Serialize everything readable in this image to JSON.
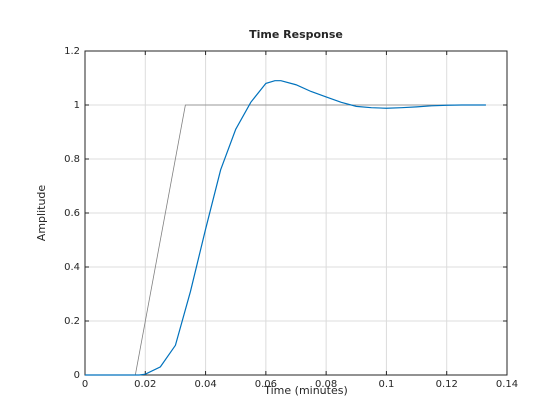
{
  "chart_data": {
    "type": "line",
    "title": "Time Response",
    "x_label": "Time (minutes)",
    "y_label": "Amplitude",
    "xlim": [
      0,
      0.14
    ],
    "ylim": [
      0,
      1.2
    ],
    "xticks": [
      0,
      0.02,
      0.04,
      0.06,
      0.08,
      0.1,
      0.12,
      0.14
    ],
    "yticks": [
      0,
      0.2,
      0.4,
      0.6,
      0.8,
      1,
      1.2
    ],
    "grid": true,
    "series": [
      {
        "color": "#808080",
        "x": [
          0,
          0.0167,
          0.0333,
          0.133
        ],
        "values": [
          0,
          0,
          1,
          1
        ]
      },
      {
        "color": "#0072bd",
        "x": [
          0,
          0.018,
          0.02,
          0.025,
          0.03,
          0.035,
          0.04,
          0.045,
          0.05,
          0.055,
          0.06,
          0.063,
          0.065,
          0.07,
          0.075,
          0.08,
          0.085,
          0.09,
          0.095,
          0.1,
          0.105,
          0.11,
          0.115,
          0.12,
          0.125,
          0.133
        ],
        "values": [
          0,
          0,
          0.003,
          0.03,
          0.11,
          0.31,
          0.54,
          0.76,
          0.91,
          1.01,
          1.08,
          1.09,
          1.09,
          1.075,
          1.05,
          1.03,
          1.01,
          0.995,
          0.99,
          0.988,
          0.99,
          0.993,
          0.997,
          0.999,
          1,
          1
        ]
      }
    ]
  }
}
